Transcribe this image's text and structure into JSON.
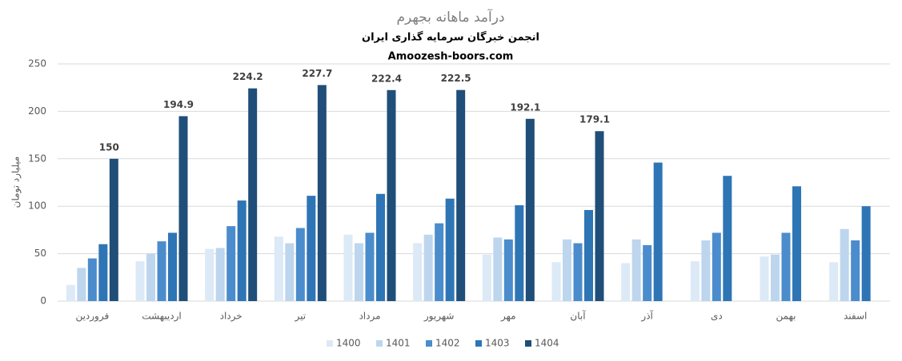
{
  "chart_data": {
    "type": "bar",
    "title": "درآمد ماهانه بجهرم",
    "subtitle": "انجمن خبرگان سرمایه گذاری ایران",
    "source": "Amoozesh-boors.com",
    "y_label": "میلیارد تومان",
    "categories": [
      "فروردین",
      "اردیبهشت",
      "خرداد",
      "تیر",
      "مرداد",
      "شهریور",
      "مهر",
      "آبان",
      "آذر",
      "دی",
      "بهمن",
      "اسفند"
    ],
    "series": [
      {
        "name": "1400",
        "color": "#dce9f6",
        "values": [
          17,
          42,
          55,
          68,
          70,
          61,
          49,
          41,
          40,
          42,
          47,
          41
        ]
      },
      {
        "name": "1401",
        "color": "#bdd6ee",
        "values": [
          35,
          50,
          56,
          61,
          61,
          70,
          67,
          65,
          65,
          64,
          49,
          76
        ]
      },
      {
        "name": "1402",
        "color": "#4b8ccc",
        "values": [
          45,
          63,
          79,
          77,
          72,
          82,
          65,
          61,
          59,
          72,
          72,
          64
        ]
      },
      {
        "name": "1403",
        "color": "#2e75b6",
        "values": [
          60,
          72,
          106,
          111,
          113,
          108,
          101,
          96,
          146,
          132,
          121,
          100
        ]
      },
      {
        "name": "1404",
        "color": "#1f4e79",
        "data_labels": true,
        "values": [
          150,
          194.9,
          224.2,
          227.7,
          222.4,
          222.5,
          192.1,
          179.1,
          null,
          null,
          null,
          null
        ]
      }
    ],
    "ylim": [
      0,
      250
    ],
    "yticks": [
      0,
      50,
      100,
      150,
      200,
      250
    ],
    "grid": true,
    "legend": "bottom"
  }
}
